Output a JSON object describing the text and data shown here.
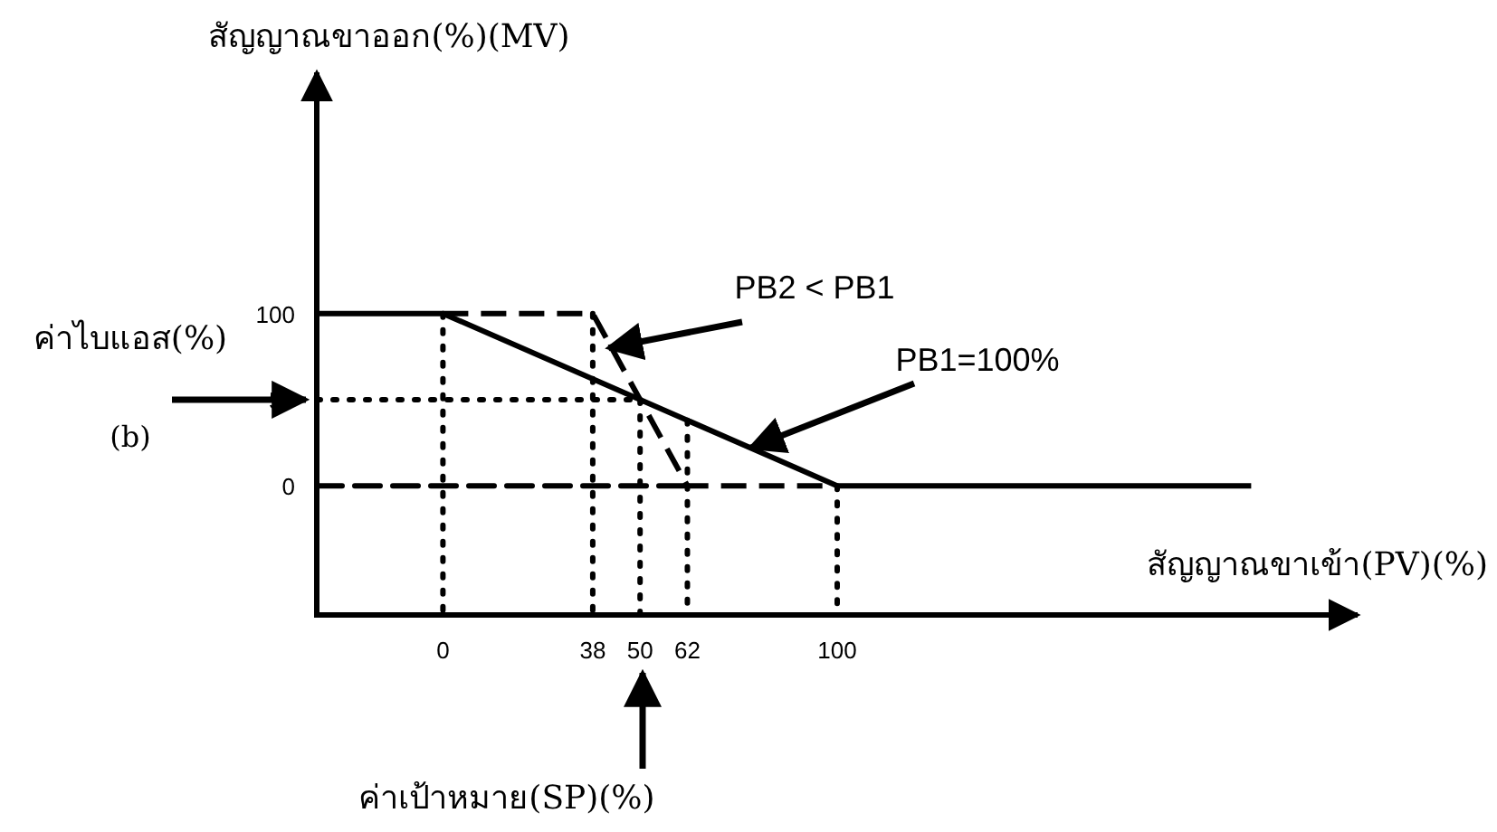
{
  "chart_data": {
    "type": "line",
    "xlabel": "สัญญาณขาเข้า(PV)(%)",
    "ylabel": "สัญญาณขาออก(%)(MV)",
    "xlim": [
      -32,
      232
    ],
    "ylim": [
      -75,
      240
    ],
    "xticks": [
      0,
      38,
      50,
      62,
      100
    ],
    "yticks": [
      0,
      50,
      100
    ],
    "series": [
      {
        "color": "#000000",
        "line_style": "dashed",
        "x": [
          0,
          38,
          62,
          100
        ],
        "values": [
          100,
          100,
          0,
          0
        ]
      },
      {
        "color": "#000000",
        "line_style": "solid",
        "x": [
          -32,
          0,
          100,
          205
        ],
        "values": [
          100,
          100,
          0,
          0
        ]
      }
    ],
    "ref_lines": [
      {
        "axis": "y",
        "value": 0,
        "line_style": "dashed"
      },
      {
        "axis": "y",
        "value": 50,
        "line_style": "dotted"
      },
      {
        "axis": "x",
        "value": 0,
        "line_style": "dotted"
      },
      {
        "axis": "x",
        "value": 38,
        "line_style": "dotted"
      },
      {
        "axis": "x",
        "value": 50,
        "line_style": "dotted"
      },
      {
        "axis": "x",
        "value": 62,
        "line_style": "dotted"
      },
      {
        "axis": "x",
        "value": 100,
        "line_style": "dotted"
      }
    ],
    "annotations": [
      {
        "text": "PB2 < PB1",
        "x": 42,
        "y": 80
      },
      {
        "text": "PB1=100%",
        "x": 78,
        "y": 22
      },
      {
        "text": "ค่าไบแอส(%)",
        "x": -32,
        "y": 50
      },
      "(b)",
      "ค่าเป้าหมาย(SP)(%)"
    ],
    "grid": false,
    "marker": "none"
  }
}
